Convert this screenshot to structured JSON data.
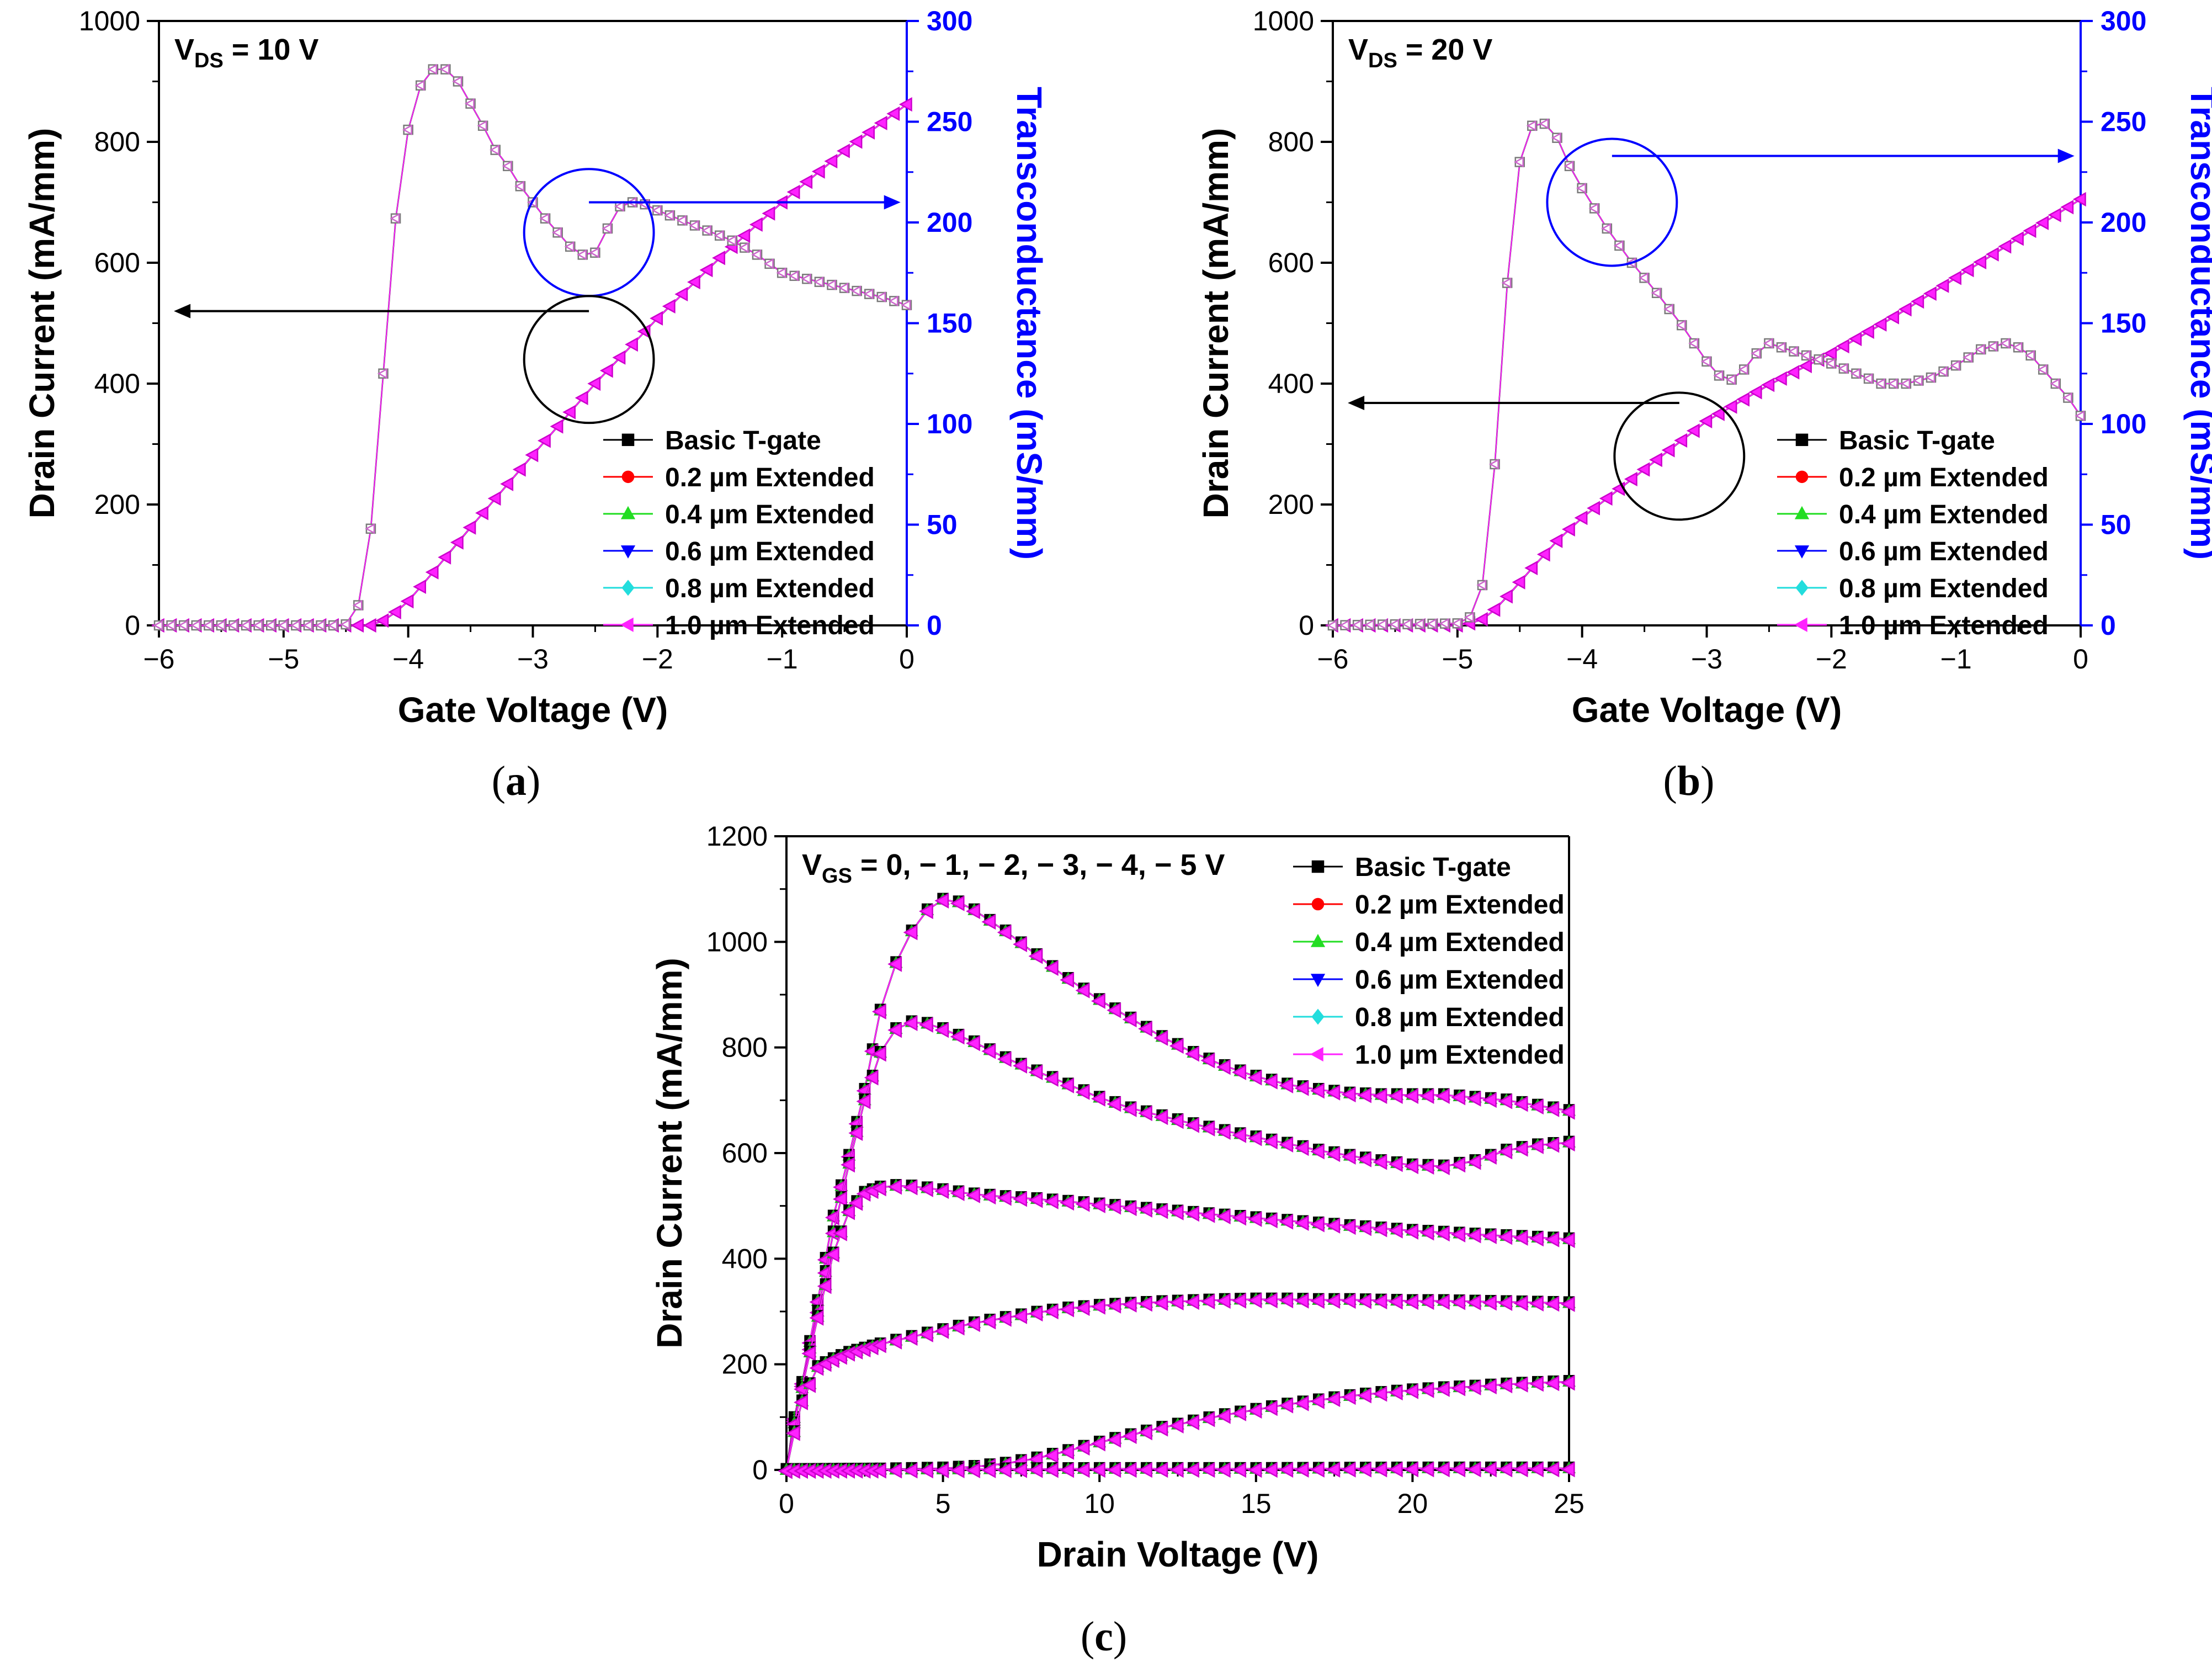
{
  "chart_data": [
    {
      "id": "a",
      "type": "line",
      "caption_letter": "a",
      "annotation": {
        "main": "V",
        "sub": "DS",
        "rest": " = 10 V"
      },
      "xlabel": "Gate Voltage (V)",
      "ylabel": "Drain Current (mA/mm)",
      "y2label": "Transconductance (mS/mm)",
      "xlim": [
        -6,
        0
      ],
      "ylim": [
        0,
        1000
      ],
      "y2lim": [
        0,
        300
      ],
      "xticks": [
        -6,
        -5,
        -4,
        -3,
        -2,
        -1,
        0
      ],
      "xtick_labels": [
        "−6",
        "−5",
        "−4",
        "−3",
        "−2",
        "−1",
        "0"
      ],
      "yticks": [
        0,
        200,
        400,
        600,
        800,
        1000
      ],
      "y2ticks": [
        0,
        50,
        100,
        150,
        200,
        250,
        300
      ],
      "current_curve": {
        "x": [
          -6,
          -4.3,
          -4.2,
          -4.1,
          -4.0,
          -3.8,
          -3.5,
          -3.0,
          -2.5,
          -2.0,
          -1.5,
          -1.0,
          -0.5,
          0
        ],
        "y": [
          0,
          0,
          8,
          22,
          40,
          88,
          162,
          282,
          400,
          508,
          608,
          700,
          785,
          862
        ]
      },
      "gm_curve": {
        "x": [
          -6,
          -4.6,
          -4.5,
          -4.4,
          -4.3,
          -4.2,
          -4.1,
          -4.0,
          -3.9,
          -3.8,
          -3.7,
          -3.6,
          -3.5,
          -3.4,
          -3.3,
          -3.2,
          -3.1,
          -3.0,
          -2.9,
          -2.8,
          -2.7,
          -2.6,
          -2.5,
          -2.4,
          -2.3,
          -2.2,
          -2.1,
          -2.0,
          -1.8,
          -1.6,
          -1.4,
          -1.2,
          -1.0,
          -0.8,
          -0.6,
          -0.4,
          -0.2,
          0
        ],
        "y": [
          0,
          0,
          0.5,
          10,
          48,
          125,
          202,
          246,
          268,
          276,
          276,
          270,
          259,
          248,
          236,
          228,
          218,
          210,
          202,
          195,
          188,
          184,
          185,
          197,
          208,
          210,
          209,
          206,
          201,
          196,
          191,
          184,
          175,
          172,
          169,
          166,
          163,
          159
        ]
      },
      "circle_gm": {
        "cx": -2.55,
        "cy": 650,
        "rx": 0.52,
        "ry": 105
      },
      "circle_id": {
        "cx": -2.55,
        "cy": 440,
        "rx": 0.52,
        "ry": 105
      },
      "arrow_gm": {
        "from": [
          -2.55,
          210
        ],
        "to": [
          -0.05,
          210
        ]
      },
      "arrow_id": {
        "from": [
          -2.55,
          520
        ],
        "to": [
          -5.88,
          520
        ]
      },
      "legend": [
        "Basic T-gate",
        "0.2 µm Extended",
        "0.4 µm Extended",
        "0.6 µm Extended",
        "0.8 µm Extended",
        "1.0 µm Extended"
      ]
    },
    {
      "id": "b",
      "type": "line",
      "caption_letter": "b",
      "annotation": {
        "main": "V",
        "sub": "DS",
        "rest": " = 20 V"
      },
      "xlabel": "Gate Voltage (V)",
      "ylabel": "Drain Current (mA/mm)",
      "y2label": "Transconductance (mS/mm)",
      "xlim": [
        -6,
        0
      ],
      "ylim": [
        0,
        1000
      ],
      "y2lim": [
        0,
        300
      ],
      "xticks": [
        -6,
        -5,
        -4,
        -3,
        -2,
        -1,
        0
      ],
      "xtick_labels": [
        "−6",
        "−5",
        "−4",
        "−3",
        "−2",
        "−1",
        "0"
      ],
      "yticks": [
        0,
        200,
        400,
        600,
        800,
        1000
      ],
      "y2ticks": [
        0,
        50,
        100,
        150,
        200,
        250,
        300
      ],
      "current_curve": {
        "x": [
          -6,
          -4.95,
          -4.8,
          -4.7,
          -4.6,
          -4.4,
          -4.2,
          -4.0,
          -3.5,
          -3.0,
          -2.5,
          -2.0,
          -1.5,
          -1.0,
          -0.5,
          0
        ],
        "y": [
          0,
          0,
          10,
          26,
          48,
          95,
          140,
          178,
          258,
          338,
          398,
          450,
          510,
          575,
          640,
          705
        ]
      },
      "gm_curve": {
        "x": [
          -6,
          -5.0,
          -4.9,
          -4.8,
          -4.7,
          -4.6,
          -4.5,
          -4.4,
          -4.3,
          -4.2,
          -4.1,
          -4.0,
          -3.8,
          -3.6,
          -3.4,
          -3.2,
          -3.0,
          -2.9,
          -2.8,
          -2.7,
          -2.6,
          -2.5,
          -2.4,
          -2.3,
          -2.2,
          -2.0,
          -1.8,
          -1.6,
          -1.4,
          -1.2,
          -1.0,
          -0.8,
          -0.6,
          -0.5,
          -0.4,
          -0.3,
          -0.2,
          -0.1,
          0
        ],
        "y": [
          0,
          1,
          4,
          20,
          80,
          170,
          230,
          248,
          249,
          242,
          228,
          217,
          197,
          180,
          165,
          149,
          131,
          124,
          122,
          127,
          135,
          140,
          138,
          136,
          134,
          130,
          125,
          120,
          120,
          123,
          129,
          137,
          140,
          138,
          134,
          127,
          120,
          113,
          104
        ]
      },
      "circle_gm": {
        "cx": -3.76,
        "cy": 700,
        "rx": 0.52,
        "ry": 105
      },
      "circle_id": {
        "cx": -3.22,
        "cy": 280,
        "rx": 0.52,
        "ry": 105
      },
      "arrow_gm": {
        "from": [
          -3.76,
          233
        ],
        "to": [
          -0.05,
          233
        ]
      },
      "arrow_id": {
        "from": [
          -3.22,
          368
        ],
        "to": [
          -5.88,
          368
        ]
      },
      "legend": [
        "Basic T-gate",
        "0.2 µm Extended",
        "0.4 µm Extended",
        "0.6 µm Extended",
        "0.8 µm Extended",
        "1.0 µm Extended"
      ]
    },
    {
      "id": "c",
      "type": "line",
      "caption_letter": "c",
      "annotation": {
        "main": "V",
        "sub": "GS",
        "rest": " = 0, − 1, − 2, − 3, − 4, − 5 V"
      },
      "xlabel": "Drain Voltage (V)",
      "ylabel": "Drain Current (mA/mm)",
      "xlim": [
        0,
        25
      ],
      "ylim": [
        0,
        1200
      ],
      "xticks": [
        0,
        5,
        10,
        15,
        20,
        25
      ],
      "xtick_labels": [
        "0",
        "5",
        "10",
        "15",
        "20",
        "25"
      ],
      "yticks": [
        0,
        200,
        400,
        600,
        800,
        1000,
        1200
      ],
      "legend": [
        "Basic T-gate",
        "0.2 µm Extended",
        "0.4 µm Extended",
        "0.6 µm Extended",
        "0.8 µm Extended",
        "1.0 µm Extended"
      ],
      "series": [
        {
          "name": "VGS = 0 V",
          "x": [
            0,
            0.2,
            0.5,
            1.0,
            1.5,
            2.0,
            2.5,
            3.0,
            3.5,
            4.0,
            4.5,
            5.0,
            5.5,
            6.0,
            7.0,
            8.0,
            9.0,
            10.0,
            11.0,
            12.0,
            13.0,
            14.0,
            15.0,
            16.0,
            17.0,
            18.0,
            19.0,
            20.0,
            21.0,
            22.0,
            23.0,
            24.0,
            25.0
          ],
          "y": [
            0,
            85,
            165,
            320,
            480,
            595,
            720,
            870,
            960,
            1020,
            1060,
            1080,
            1075,
            1060,
            1020,
            975,
            930,
            890,
            855,
            820,
            790,
            765,
            745,
            730,
            720,
            713,
            710,
            710,
            710,
            705,
            700,
            690,
            680
          ]
        },
        {
          "name": "VGS = -1 V",
          "x": [
            0,
            0.2,
            0.5,
            1.0,
            1.5,
            2.0,
            2.5,
            3.0,
            3.5,
            4.0,
            4.5,
            5.0,
            6.0,
            7.0,
            8.0,
            9.0,
            10.0,
            11.0,
            12.0,
            13.0,
            14.0,
            15.0,
            16.0,
            17.0,
            18.0,
            19.0,
            20.0,
            21.0,
            22.0,
            23.0,
            24.0,
            25.0
          ],
          "y": [
            0,
            80,
            160,
            300,
            450,
            580,
            700,
            790,
            835,
            848,
            845,
            835,
            810,
            780,
            755,
            730,
            705,
            685,
            670,
            655,
            642,
            630,
            618,
            605,
            595,
            585,
            577,
            575,
            585,
            605,
            615,
            620
          ]
        },
        {
          "name": "VGS = -2 V",
          "x": [
            0,
            0.2,
            0.5,
            1.0,
            1.5,
            2.0,
            2.5,
            3.0,
            3.5,
            4.0,
            5.0,
            6.0,
            7.0,
            8.0,
            10.0,
            12.0,
            14.0,
            16.0,
            18.0,
            20.0,
            22.0,
            24.0,
            25.0
          ],
          "y": [
            0,
            75,
            155,
            290,
            410,
            490,
            525,
            535,
            538,
            537,
            530,
            522,
            517,
            513,
            503,
            492,
            482,
            472,
            462,
            453,
            446,
            440,
            437
          ]
        },
        {
          "name": "VGS = -3 V",
          "x": [
            0,
            0.2,
            0.5,
            1.0,
            1.5,
            2.0,
            3.0,
            4.0,
            5.0,
            6.0,
            7.0,
            8.0,
            9.0,
            10.0,
            11.0,
            12.0,
            13.0,
            14.0,
            15.0,
            16.0,
            17.0,
            18.0,
            19.0,
            20.0,
            21.0,
            22.0,
            23.0,
            24.0,
            25.0
          ],
          "y": [
            0,
            60,
            130,
            195,
            210,
            222,
            238,
            252,
            265,
            278,
            288,
            298,
            306,
            311,
            315,
            318,
            320,
            322,
            323,
            323,
            322,
            322,
            321,
            320,
            320,
            319,
            318,
            317,
            316
          ]
        },
        {
          "name": "VGS = -4 V",
          "x": [
            0,
            3.0,
            5.0,
            6.0,
            7.0,
            8.0,
            9.0,
            10.0,
            11.0,
            12.0,
            13.0,
            14.0,
            15.0,
            16.0,
            17.0,
            18.0,
            19.0,
            20.0,
            21.0,
            22.0,
            23.0,
            24.0,
            25.0
          ],
          "y": [
            0,
            1,
            3,
            6,
            12,
            22,
            36,
            52,
            66,
            80,
            92,
            104,
            114,
            124,
            132,
            140,
            146,
            151,
            155,
            158,
            162,
            165,
            167
          ]
        },
        {
          "name": "VGS = -5 V",
          "x": [
            0,
            5.0,
            10.0,
            15.0,
            20.0,
            25.0
          ],
          "y": [
            0,
            1,
            2,
            2,
            3,
            3
          ]
        }
      ]
    }
  ],
  "legend_styles": [
    {
      "label": "Basic T-gate",
      "color": "#000000",
      "marker": "square"
    },
    {
      "label": "0.2 µm Extended",
      "color": "#ff0000",
      "marker": "circle"
    },
    {
      "label": "0.4 µm Extended",
      "color": "#22dd22",
      "marker": "triangle-up"
    },
    {
      "label": "0.6 µm Extended",
      "color": "#0000ff",
      "marker": "triangle-down"
    },
    {
      "label": "0.8 µm Extended",
      "color": "#22dddd",
      "marker": "diamond"
    },
    {
      "label": "1.0 µm Extended",
      "color": "#ff22ff",
      "marker": "triangle-left"
    }
  ],
  "colors": {
    "axis": "#000000",
    "secondary_axis": "#0000ff",
    "gm_marker_edge": "#808080"
  }
}
